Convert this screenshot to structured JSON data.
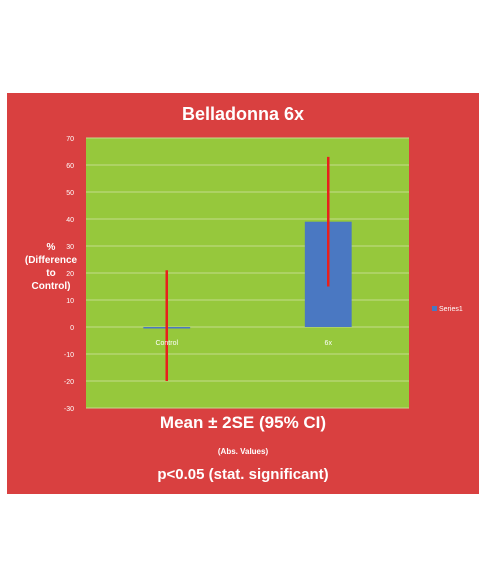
{
  "chart_data": {
    "type": "bar",
    "title": "Belladonna 6x",
    "ylabel": [
      "%",
      "(Difference",
      "to",
      "Control)"
    ],
    "categories": [
      "Control",
      "6x"
    ],
    "series": [
      {
        "name": "Series1",
        "values": [
          0,
          39
        ],
        "error_low": [
          -20,
          15
        ],
        "error_high": [
          21,
          63
        ]
      }
    ],
    "ylim": [
      -30,
      70
    ],
    "yticks": [
      -30,
      -20,
      -10,
      0,
      10,
      20,
      30,
      40,
      50,
      60,
      70
    ],
    "grid": true,
    "legend": "right",
    "colors": {
      "frame": "#d94040",
      "plot_area": "#96c83c",
      "bar": "#4a78c2",
      "error_bar": "#e8201c",
      "gridline": "#c4dc8c",
      "text": "#ffffff"
    }
  },
  "captions": {
    "main": "Mean ± 2SE  (95% CI)",
    "sub": "(Abs. Values)",
    "significance": "p<0.05 (stat. significant)"
  }
}
